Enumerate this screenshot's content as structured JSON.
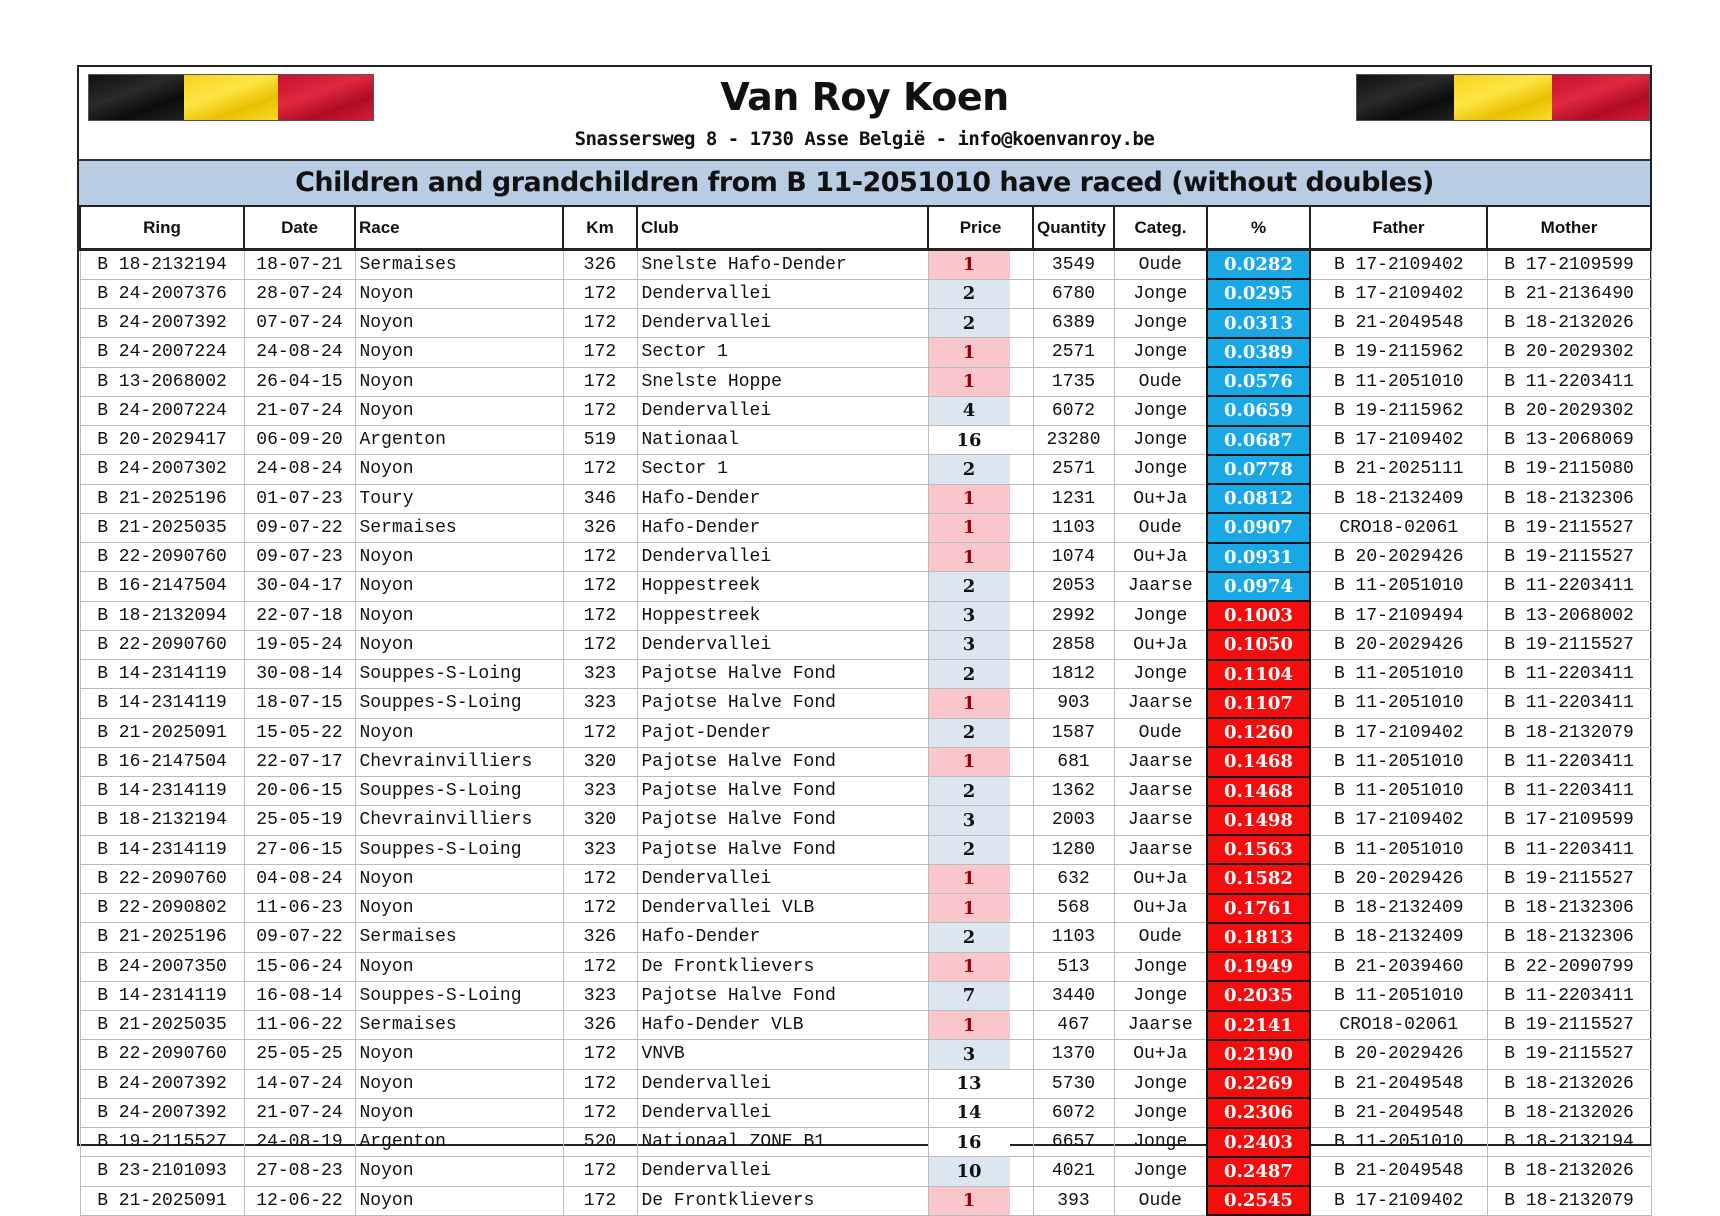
{
  "header": {
    "title": "Van Roy Koen",
    "address": "Snassersweg 8 - 1730 Asse België - info@koenvanroy.be",
    "subtitle": "Children and grandchildren from B 11-2051010 have raced (without doubles)",
    "flag_colors": [
      "#111111",
      "#f7d21a",
      "#c8102e"
    ]
  },
  "colors": {
    "pct_low": "#1aa7e6",
    "pct_high": "#f40d0d",
    "price_first": "#f9c6cc",
    "price_top": "#dce6f1",
    "band": "#b8cce4"
  },
  "table": {
    "columns": [
      "Ring",
      "Date",
      "Race",
      "Km",
      "Club",
      "Price",
      "Quantity",
      "Categ.",
      "%",
      "Father",
      "Mother"
    ],
    "rows": [
      [
        "B 18-2132194",
        "18-07-21",
        "Sermaises",
        "326",
        "Snelste Hafo-Dender",
        "1",
        "3549",
        "Oude",
        "0.0282",
        "B 17-2109402",
        "B 17-2109599"
      ],
      [
        "B 24-2007376",
        "28-07-24",
        "Noyon",
        "172",
        "Dendervallei",
        "2",
        "6780",
        "Jonge",
        "0.0295",
        "B 17-2109402",
        "B 21-2136490"
      ],
      [
        "B 24-2007392",
        "07-07-24",
        "Noyon",
        "172",
        "Dendervallei",
        "2",
        "6389",
        "Jonge",
        "0.0313",
        "B 21-2049548",
        "B 18-2132026"
      ],
      [
        "B 24-2007224",
        "24-08-24",
        "Noyon",
        "172",
        "Sector 1",
        "1",
        "2571",
        "Jonge",
        "0.0389",
        "B 19-2115962",
        "B 20-2029302"
      ],
      [
        "B 13-2068002",
        "26-04-15",
        "Noyon",
        "172",
        "Snelste Hoppe",
        "1",
        "1735",
        "Oude",
        "0.0576",
        "B 11-2051010",
        "B 11-2203411"
      ],
      [
        "B 24-2007224",
        "21-07-24",
        "Noyon",
        "172",
        "Dendervallei",
        "4",
        "6072",
        "Jonge",
        "0.0659",
        "B 19-2115962",
        "B 20-2029302"
      ],
      [
        "B 20-2029417",
        "06-09-20",
        "Argenton",
        "519",
        "Nationaal",
        "16",
        "23280",
        "Jonge",
        "0.0687",
        "B 17-2109402",
        "B 13-2068069"
      ],
      [
        "B 24-2007302",
        "24-08-24",
        "Noyon",
        "172",
        "Sector 1",
        "2",
        "2571",
        "Jonge",
        "0.0778",
        "B 21-2025111",
        "B 19-2115080"
      ],
      [
        "B 21-2025196",
        "01-07-23",
        "Toury",
        "346",
        "Hafo-Dender",
        "1",
        "1231",
        "Ou+Ja",
        "0.0812",
        "B 18-2132409",
        "B 18-2132306"
      ],
      [
        "B 21-2025035",
        "09-07-22",
        "Sermaises",
        "326",
        "Hafo-Dender",
        "1",
        "1103",
        "Oude",
        "0.0907",
        "CRO18-02061",
        "B 19-2115527"
      ],
      [
        "B 22-2090760",
        "09-07-23",
        "Noyon",
        "172",
        "Dendervallei",
        "1",
        "1074",
        "Ou+Ja",
        "0.0931",
        "B 20-2029426",
        "B 19-2115527"
      ],
      [
        "B 16-2147504",
        "30-04-17",
        "Noyon",
        "172",
        "Hoppestreek",
        "2",
        "2053",
        "Jaarse",
        "0.0974",
        "B 11-2051010",
        "B 11-2203411"
      ],
      [
        "B 18-2132094",
        "22-07-18",
        "Noyon",
        "172",
        "Hoppestreek",
        "3",
        "2992",
        "Jonge",
        "0.1003",
        "B 17-2109494",
        "B 13-2068002"
      ],
      [
        "B 22-2090760",
        "19-05-24",
        "Noyon",
        "172",
        "Dendervallei",
        "3",
        "2858",
        "Ou+Ja",
        "0.1050",
        "B 20-2029426",
        "B 19-2115527"
      ],
      [
        "B 14-2314119",
        "30-08-14",
        "Souppes-S-Loing",
        "323",
        "Pajotse Halve Fond",
        "2",
        "1812",
        "Jonge",
        "0.1104",
        "B 11-2051010",
        "B 11-2203411"
      ],
      [
        "B 14-2314119",
        "18-07-15",
        "Souppes-S-Loing",
        "323",
        "Pajotse Halve Fond",
        "1",
        "903",
        "Jaarse",
        "0.1107",
        "B 11-2051010",
        "B 11-2203411"
      ],
      [
        "B 21-2025091",
        "15-05-22",
        "Noyon",
        "172",
        "Pajot-Dender",
        "2",
        "1587",
        "Oude",
        "0.1260",
        "B 17-2109402",
        "B 18-2132079"
      ],
      [
        "B 16-2147504",
        "22-07-17",
        "Chevrainvilliers",
        "320",
        "Pajotse Halve Fond",
        "1",
        "681",
        "Jaarse",
        "0.1468",
        "B 11-2051010",
        "B 11-2203411"
      ],
      [
        "B 14-2314119",
        "20-06-15",
        "Souppes-S-Loing",
        "323",
        "Pajotse Halve Fond",
        "2",
        "1362",
        "Jaarse",
        "0.1468",
        "B 11-2051010",
        "B 11-2203411"
      ],
      [
        "B 18-2132194",
        "25-05-19",
        "Chevrainvilliers",
        "320",
        "Pajotse Halve Fond",
        "3",
        "2003",
        "Jaarse",
        "0.1498",
        "B 17-2109402",
        "B 17-2109599"
      ],
      [
        "B 14-2314119",
        "27-06-15",
        "Souppes-S-Loing",
        "323",
        "Pajotse Halve Fond",
        "2",
        "1280",
        "Jaarse",
        "0.1563",
        "B 11-2051010",
        "B 11-2203411"
      ],
      [
        "B 22-2090760",
        "04-08-24",
        "Noyon",
        "172",
        "Dendervallei",
        "1",
        "632",
        "Ou+Ja",
        "0.1582",
        "B 20-2029426",
        "B 19-2115527"
      ],
      [
        "B 22-2090802",
        "11-06-23",
        "Noyon",
        "172",
        "Dendervallei VLB",
        "1",
        "568",
        "Ou+Ja",
        "0.1761",
        "B 18-2132409",
        "B 18-2132306"
      ],
      [
        "B 21-2025196",
        "09-07-22",
        "Sermaises",
        "326",
        "Hafo-Dender",
        "2",
        "1103",
        "Oude",
        "0.1813",
        "B 18-2132409",
        "B 18-2132306"
      ],
      [
        "B 24-2007350",
        "15-06-24",
        "Noyon",
        "172",
        "De Frontklievers",
        "1",
        "513",
        "Jonge",
        "0.1949",
        "B 21-2039460",
        "B 22-2090799"
      ],
      [
        "B 14-2314119",
        "16-08-14",
        "Souppes-S-Loing",
        "323",
        "Pajotse Halve Fond",
        "7",
        "3440",
        "Jonge",
        "0.2035",
        "B 11-2051010",
        "B 11-2203411"
      ],
      [
        "B 21-2025035",
        "11-06-22",
        "Sermaises",
        "326",
        "Hafo-Dender VLB",
        "1",
        "467",
        "Jaarse",
        "0.2141",
        "CRO18-02061",
        "B 19-2115527"
      ],
      [
        "B 22-2090760",
        "25-05-25",
        "Noyon",
        "172",
        "VNVB",
        "3",
        "1370",
        "Ou+Ja",
        "0.2190",
        "B 20-2029426",
        "B 19-2115527"
      ],
      [
        "B 24-2007392",
        "14-07-24",
        "Noyon",
        "172",
        "Dendervallei",
        "13",
        "5730",
        "Jonge",
        "0.2269",
        "B 21-2049548",
        "B 18-2132026"
      ],
      [
        "B 24-2007392",
        "21-07-24",
        "Noyon",
        "172",
        "Dendervallei",
        "14",
        "6072",
        "Jonge",
        "0.2306",
        "B 21-2049548",
        "B 18-2132026"
      ],
      [
        "B 19-2115527",
        "24-08-19",
        "Argenton",
        "520",
        "Nationaal ZONE B1",
        "16",
        "6657",
        "Jonge",
        "0.2403",
        "B 11-2051010",
        "B 18-2132194"
      ],
      [
        "B 23-2101093",
        "27-08-23",
        "Noyon",
        "172",
        "Dendervallei",
        "10",
        "4021",
        "Jonge",
        "0.2487",
        "B 21-2049548",
        "B 18-2132026"
      ],
      [
        "B 21-2025091",
        "12-06-22",
        "Noyon",
        "172",
        "De Frontklievers",
        "1",
        "393",
        "Oude",
        "0.2545",
        "B 17-2109402",
        "B 18-2132079"
      ]
    ]
  }
}
